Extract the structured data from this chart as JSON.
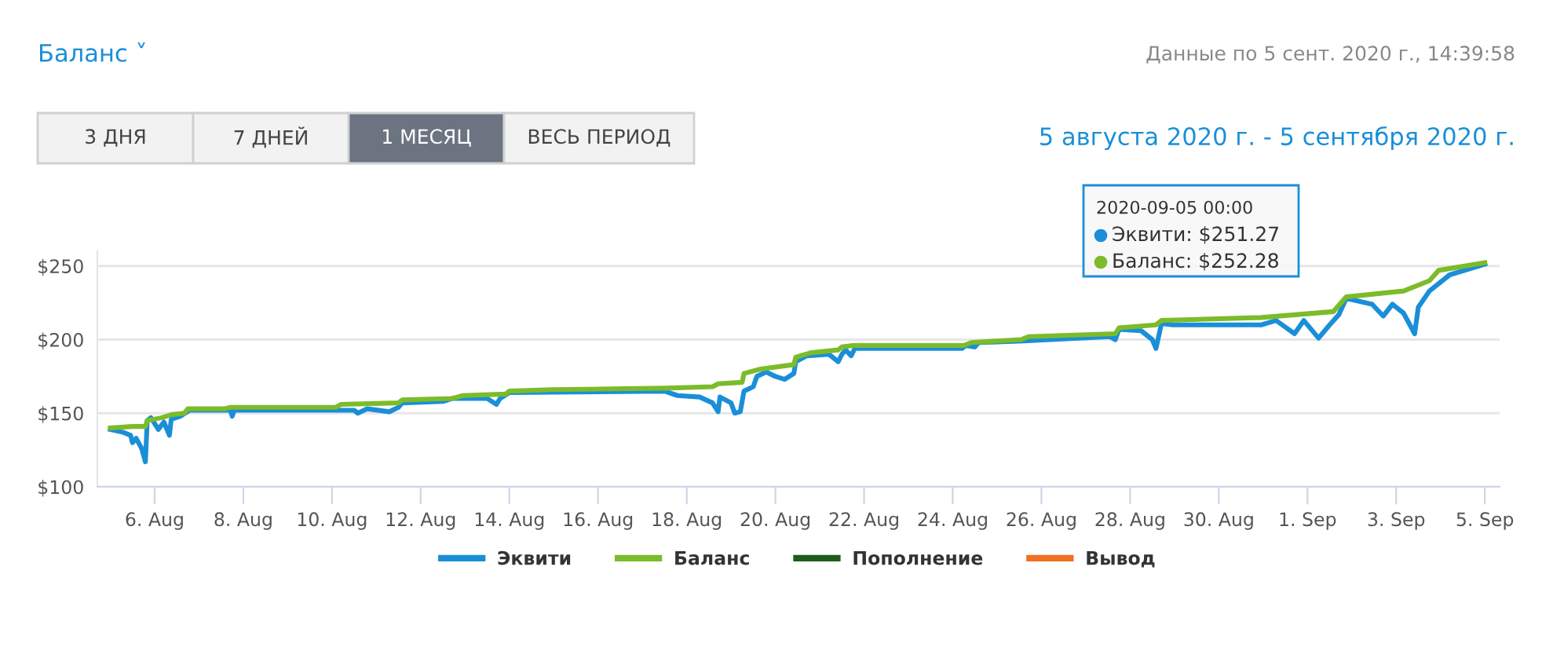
{
  "chart_data": {
    "type": "line",
    "title": "Баланс ˅",
    "subtitle": "Данные по 5 сент. 2020 г., 14:39:58",
    "annotations": [
      "3 ДНЯ",
      "7 ДНЕЙ",
      "1 МЕСЯЦ",
      "ВЕСЬ ПЕРИОД",
      "5 августа 2020 г. - 5 сентября 2020 г.",
      "2020-09-05 00:00",
      "Эквити: $251.27",
      "Баланс: $252.28"
    ],
    "xlim": [
      "2020-08-04T17:00",
      "2020-09-05T08:00"
    ],
    "xticks": [
      {
        "value": "2020-08-06",
        "label": "6. Aug"
      },
      {
        "value": "2020-08-08",
        "label": "8. Aug"
      },
      {
        "value": "2020-08-10",
        "label": "10. Aug"
      },
      {
        "value": "2020-08-12",
        "label": "12. Aug"
      },
      {
        "value": "2020-08-14",
        "label": "14. Aug"
      },
      {
        "value": "2020-08-16",
        "label": "16. Aug"
      },
      {
        "value": "2020-08-18",
        "label": "18. Aug"
      },
      {
        "value": "2020-08-20",
        "label": "20. Aug"
      },
      {
        "value": "2020-08-22",
        "label": "22. Aug"
      },
      {
        "value": "2020-08-24",
        "label": "24. Aug"
      },
      {
        "value": "2020-08-26",
        "label": "26. Aug"
      },
      {
        "value": "2020-08-28",
        "label": "28. Aug"
      },
      {
        "value": "2020-08-30",
        "label": "30. Aug"
      },
      {
        "value": "2020-09-01",
        "label": "1. Sep"
      },
      {
        "value": "2020-09-03",
        "label": "3. Sep"
      },
      {
        "value": "2020-09-05",
        "label": "5. Sep"
      }
    ],
    "ylim": [
      100,
      260
    ],
    "yticks": [
      {
        "value": 100,
        "label": "$100"
      },
      {
        "value": 150,
        "label": "$150"
      },
      {
        "value": 200,
        "label": "$200"
      },
      {
        "value": 250,
        "label": "$250"
      }
    ],
    "grid": "y",
    "legend": "bottom",
    "series": [
      {
        "name": "Эквити",
        "color": "#1a8fd8",
        "x": [
          "2020-08-05T00:00",
          "2020-08-05T07:00",
          "2020-08-05T11:00",
          "2020-08-05T12:00",
          "2020-08-05T14:00",
          "2020-08-05T17:00",
          "2020-08-05T19:00",
          "2020-08-05T20:00",
          "2020-08-05T22:00",
          "2020-08-06T00:00",
          "2020-08-06T02:00",
          "2020-08-06T05:00",
          "2020-08-06T08:00",
          "2020-08-06T09:00",
          "2020-08-06T14:00",
          "2020-08-06T19:00",
          "2020-08-07T17:00",
          "2020-08-07T18:00",
          "2020-08-07T19:00",
          "2020-08-10T12:00",
          "2020-08-10T14:00",
          "2020-08-10T19:00",
          "2020-08-11T07:00",
          "2020-08-11T12:00",
          "2020-08-11T14:00",
          "2020-08-12T12:00",
          "2020-08-12T17:00",
          "2020-08-13T12:00",
          "2020-08-13T17:00",
          "2020-08-13T19:00",
          "2020-08-14T00:00",
          "2020-08-17T12:00",
          "2020-08-17T19:00",
          "2020-08-18T07:00",
          "2020-08-18T14:00",
          "2020-08-18T17:00",
          "2020-08-18T18:00",
          "2020-08-19T00:00",
          "2020-08-19T02:00",
          "2020-08-19T05:00",
          "2020-08-19T07:00",
          "2020-08-19T12:00",
          "2020-08-19T14:00",
          "2020-08-19T19:00",
          "2020-08-20T00:00",
          "2020-08-20T05:00",
          "2020-08-20T10:00",
          "2020-08-20T11:00",
          "2020-08-20T17:00",
          "2020-08-21T05:00",
          "2020-08-21T10:00",
          "2020-08-21T12:00",
          "2020-08-21T14:00",
          "2020-08-21T17:00",
          "2020-08-21T19:00",
          "2020-08-24T05:00",
          "2020-08-24T07:00",
          "2020-08-24T12:00",
          "2020-08-24T14:00",
          "2020-08-25T12:00",
          "2020-08-27T13:00",
          "2020-08-27T16:00",
          "2020-08-27T18:00",
          "2020-08-28T06:00",
          "2020-08-28T12:00",
          "2020-08-28T14:00",
          "2020-08-28T17:00",
          "2020-08-28T23:00",
          "2020-08-30T23:00",
          "2020-08-31T07:00",
          "2020-08-31T17:00",
          "2020-08-31T22:00",
          "2020-09-01T06:00",
          "2020-09-01T12:00",
          "2020-09-01T17:00",
          "2020-09-01T21:00",
          "2020-09-02T11:00",
          "2020-09-02T17:00",
          "2020-09-02T22:00",
          "2020-09-03T04:00",
          "2020-09-03T10:00",
          "2020-09-03T12:00",
          "2020-09-03T18:00",
          "2020-09-04T05:00",
          "2020-09-05T00:00"
        ],
        "values": [
          139,
          137,
          135,
          130,
          133,
          126,
          117,
          145,
          147,
          143,
          139,
          144,
          135,
          146,
          148,
          152,
          152,
          148,
          152,
          152,
          150,
          153,
          151,
          154,
          157,
          158,
          160,
          160,
          156,
          160,
          164,
          165,
          162,
          161,
          157,
          151,
          161,
          157,
          150,
          151,
          165,
          168,
          175,
          178,
          175,
          173,
          177,
          185,
          189,
          190,
          185,
          190,
          193,
          189,
          194,
          194,
          196,
          195,
          198,
          199,
          202,
          200,
          207,
          206,
          200,
          194,
          211,
          210,
          210,
          213,
          204,
          213,
          201,
          210,
          217,
          228,
          224,
          216,
          224,
          218,
          204,
          222,
          233,
          244,
          251.27
        ]
      },
      {
        "name": "Баланс",
        "color": "#7cbb2a",
        "x": [
          "2020-08-05T00:00",
          "2020-08-05T12:00",
          "2020-08-05T19:00",
          "2020-08-05T20:00",
          "2020-08-06T04:00",
          "2020-08-06T09:00",
          "2020-08-06T16:00",
          "2020-08-06T18:00",
          "2020-08-07T14:00",
          "2020-08-07T17:00",
          "2020-08-10T02:00",
          "2020-08-10T05:00",
          "2020-08-11T12:00",
          "2020-08-11T14:00",
          "2020-08-12T17:00",
          "2020-08-12T23:00",
          "2020-08-13T22:00",
          "2020-08-14T00:00",
          "2020-08-14T23:00",
          "2020-08-17T12:00",
          "2020-08-18T14:00",
          "2020-08-18T17:00",
          "2020-08-19T06:00",
          "2020-08-19T07:00",
          "2020-08-19T16:00",
          "2020-08-20T10:00",
          "2020-08-20T11:00",
          "2020-08-20T19:00",
          "2020-08-21T10:00",
          "2020-08-21T12:00",
          "2020-08-21T18:00",
          "2020-08-24T06:00",
          "2020-08-24T10:00",
          "2020-08-25T13:00",
          "2020-08-25T17:00",
          "2020-08-27T16:00",
          "2020-08-27T18:00",
          "2020-08-28T14:00",
          "2020-08-28T17:00",
          "2020-08-30T23:00",
          "2020-09-01T14:00",
          "2020-09-01T21:00",
          "2020-09-03T04:00",
          "2020-09-03T18:00",
          "2020-09-03T23:00",
          "2020-09-05T00:00"
        ],
        "values": [
          140,
          141,
          141,
          145,
          147,
          149,
          150,
          153,
          153,
          154,
          154,
          156,
          157,
          159,
          160,
          162,
          163,
          165,
          166,
          167,
          168,
          170,
          171,
          177,
          180,
          183,
          188,
          191,
          193,
          195,
          196,
          196,
          198,
          200,
          202,
          204,
          208,
          210,
          213,
          215,
          219,
          229,
          233,
          240,
          247,
          252.28
        ]
      },
      {
        "name": "Пополнение",
        "color": "#1e5c1e"
      },
      {
        "name": "Вывод",
        "color": "#f07020"
      }
    ]
  }
}
